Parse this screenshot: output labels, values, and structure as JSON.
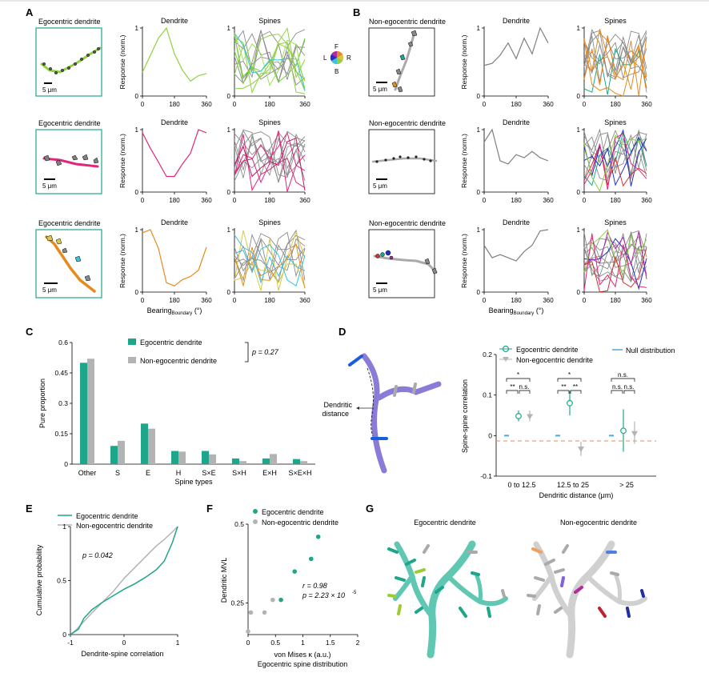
{
  "panel_letters": [
    "A",
    "B",
    "C",
    "D",
    "E",
    "F",
    "G"
  ],
  "panel_a": {
    "rows": [
      {
        "title": "Egocentric dendrite",
        "scale_label": "5 μm"
      },
      {
        "title": "Egocentric dendrite",
        "scale_label": "5 μm"
      },
      {
        "title": "Egocentric dendrite",
        "scale_label": "5 μm"
      }
    ]
  },
  "panel_b": {
    "rows": [
      {
        "title": "Non-egocentric dendrite",
        "scale_label": "5 μm"
      },
      {
        "title": "Non-egocentric dendrite",
        "scale_label": "5 μm"
      },
      {
        "title": "Non-egocentric dendrite",
        "scale_label": "5 μm"
      }
    ]
  },
  "color_wheel": {
    "labels": [
      "F",
      "L",
      "R",
      "B"
    ]
  },
  "tuning_axes": {
    "dendrite_title": "Dendrite",
    "spines_title": "Spines",
    "ylabel": "Response (norm.)",
    "xlabel_main": "Bearing",
    "xlabel_sub": "Boundary",
    "xlabel_unit": " (°)",
    "xticks": [
      "0",
      "180",
      "360"
    ],
    "yticks": [
      "0",
      "1"
    ]
  },
  "chart_data": [
    {
      "type": "line",
      "panel": "A1 dendrite",
      "color": "#8fd141",
      "x": [
        0,
        45,
        90,
        135,
        180,
        225,
        270,
        315,
        360
      ],
      "values": [
        0.35,
        0.6,
        0.85,
        1.0,
        0.62,
        0.38,
        0.22,
        0.3,
        0.33
      ],
      "xlim": [
        0,
        360
      ],
      "ylim": [
        0,
        1
      ]
    },
    {
      "type": "line",
      "panel": "A2 dendrite",
      "color": "#e0287a",
      "x": [
        0,
        45,
        90,
        135,
        180,
        225,
        270,
        315,
        360
      ],
      "values": [
        0.95,
        0.7,
        0.48,
        0.25,
        0.25,
        0.45,
        0.62,
        1.0,
        0.95
      ],
      "xlim": [
        0,
        360
      ],
      "ylim": [
        0,
        1
      ]
    },
    {
      "type": "line",
      "panel": "A3 dendrite",
      "color": "#e68a1e",
      "x": [
        0,
        45,
        90,
        135,
        180,
        225,
        270,
        315,
        360
      ],
      "values": [
        0.95,
        1.0,
        0.7,
        0.15,
        0.1,
        0.2,
        0.25,
        0.35,
        0.72
      ],
      "xlim": [
        0,
        360
      ],
      "ylim": [
        0,
        1
      ]
    },
    {
      "type": "line",
      "panel": "B1 dendrite",
      "color": "#7f7f7f",
      "x": [
        0,
        45,
        90,
        135,
        180,
        225,
        270,
        315,
        360
      ],
      "values": [
        0.45,
        0.48,
        0.6,
        0.78,
        0.55,
        0.85,
        0.62,
        1.0,
        0.78
      ],
      "xlim": [
        0,
        360
      ],
      "ylim": [
        0,
        1
      ]
    },
    {
      "type": "line",
      "panel": "B2 dendrite",
      "color": "#7f7f7f",
      "x": [
        0,
        45,
        90,
        135,
        180,
        225,
        270,
        315,
        360
      ],
      "values": [
        0.8,
        1.0,
        0.5,
        0.45,
        0.6,
        0.55,
        0.65,
        0.55,
        0.5
      ],
      "xlim": [
        0,
        360
      ],
      "ylim": [
        0,
        1
      ]
    },
    {
      "type": "line",
      "panel": "B3 dendrite",
      "color": "#7f7f7f",
      "x": [
        0,
        45,
        90,
        135,
        180,
        225,
        270,
        315,
        360
      ],
      "values": [
        0.75,
        0.55,
        0.6,
        0.55,
        0.5,
        0.65,
        0.75,
        0.98,
        1.0
      ],
      "xlim": [
        0,
        360
      ],
      "ylim": [
        0,
        1
      ]
    },
    {
      "type": "bar",
      "panel": "C",
      "categories": [
        "Other",
        "S",
        "E",
        "H",
        "S×E",
        "S×H",
        "E×H",
        "S×E×H"
      ],
      "series": [
        {
          "name": "Egocentric dendrite",
          "color": "#1ea68a",
          "values": [
            0.5,
            0.09,
            0.2,
            0.065,
            0.065,
            0.028,
            0.028,
            0.025
          ]
        },
        {
          "name": "Non-egocentric dendrite",
          "color": "#b3b3b3",
          "values": [
            0.52,
            0.115,
            0.175,
            0.062,
            0.048,
            0.015,
            0.05,
            0.015
          ]
        }
      ],
      "xlabel": "Spine types",
      "ylabel": "Pure proportion",
      "ylim": [
        0,
        0.6
      ],
      "yticks": [
        "0",
        "0.15",
        "0.3",
        "0.45",
        "0.6"
      ],
      "annotation": "p = 0.27"
    },
    {
      "type": "scatter",
      "panel": "D",
      "categories": [
        "0 to 12.5",
        "12.5 to 25",
        "> 25"
      ],
      "series": [
        {
          "name": "Null distribution",
          "color": "#4da8de",
          "values": [
            0.0,
            0.0,
            0.0
          ]
        },
        {
          "name": "Egocentric dendrite",
          "color": "#1ea68a",
          "values": [
            0.048,
            0.08,
            0.012
          ],
          "err_low": [
            0.035,
            0.05,
            -0.04
          ],
          "err_high": [
            0.062,
            0.11,
            0.065
          ]
        },
        {
          "name": "Non-egocentric dendrite",
          "color": "#b3b3b3",
          "values": [
            0.047,
            -0.033,
            0.005
          ],
          "err_low": [
            0.035,
            -0.05,
            -0.02
          ],
          "err_high": [
            0.062,
            -0.015,
            0.035
          ]
        }
      ],
      "xlabel": "Dendritic distance (μm)",
      "ylabel": "Spine-spine correlation",
      "ylim": [
        -0.1,
        0.2
      ],
      "yticks": [
        "-0.1",
        "0",
        "0.1",
        "0.2"
      ],
      "significance": {
        "group1": [
          "*",
          "**",
          "n.s."
        ],
        "group2": [
          "*",
          "**",
          "**"
        ],
        "group3": [
          "n.s.",
          "n.s.",
          "n.s."
        ]
      }
    },
    {
      "type": "line",
      "panel": "E",
      "series": [
        {
          "name": "Egocentric dendrite",
          "color": "#1ea68a",
          "x": [
            -1,
            -0.85,
            -0.75,
            -0.6,
            -0.4,
            -0.2,
            0,
            0.2,
            0.4,
            0.6,
            0.75,
            0.9,
            1
          ],
          "values": [
            0,
            0.05,
            0.15,
            0.23,
            0.3,
            0.36,
            0.42,
            0.47,
            0.53,
            0.6,
            0.68,
            0.85,
            1.0
          ]
        },
        {
          "name": "Non-egocentric dendrite",
          "color": "#b3b3b3",
          "x": [
            -1,
            -0.9,
            -0.75,
            -0.6,
            -0.4,
            -0.2,
            0,
            0.2,
            0.4,
            0.6,
            0.75,
            0.9,
            1
          ],
          "values": [
            0,
            0.04,
            0.12,
            0.2,
            0.3,
            0.4,
            0.52,
            0.62,
            0.72,
            0.82,
            0.88,
            0.95,
            1.0
          ]
        }
      ],
      "xlabel": "Dendrite-spine correlation",
      "ylabel": "Cumulative probability",
      "xlim": [
        -1,
        1
      ],
      "ylim": [
        0,
        1
      ],
      "xticks": [
        "-1",
        "0",
        "1"
      ],
      "yticks": [
        "0",
        "0.5",
        "1"
      ],
      "annotation": "p = 0.042"
    },
    {
      "type": "scatter",
      "panel": "F",
      "series": [
        {
          "name": "Egocentric dendrite",
          "color": "#1ea68a",
          "x": [
            0.6,
            0.85,
            1.15,
            1.28
          ],
          "values": [
            0.26,
            0.35,
            0.39,
            0.46
          ]
        },
        {
          "name": "Non-egocentric dendrite",
          "color": "#b3b3b3",
          "x": [
            0.0,
            0.05,
            0.3,
            0.45
          ],
          "values": [
            0.16,
            0.22,
            0.22,
            0.26
          ]
        }
      ],
      "xlabel": "von Mises κ (a.u.)",
      "xlabel2": "Egocentric spine distribution",
      "ylabel": "Dendritic MVL",
      "xlim": [
        0,
        2
      ],
      "ylim": [
        0.15,
        0.5
      ],
      "xticks": [
        "0",
        "0.5",
        "1",
        "1.5",
        "2"
      ],
      "yticks": [
        "0.25",
        "0.5"
      ],
      "annotation_r": "r = 0.98",
      "annotation_p": "p = 2.23 × 10",
      "annotation_p_exp": "-5"
    }
  ],
  "panel_d_schematic": {
    "label_line1": "Dendritic",
    "label_line2": "distance"
  },
  "panel_g": {
    "title_left": "Egocentric dendrite",
    "title_right": "Non-egocentric dendrite"
  }
}
